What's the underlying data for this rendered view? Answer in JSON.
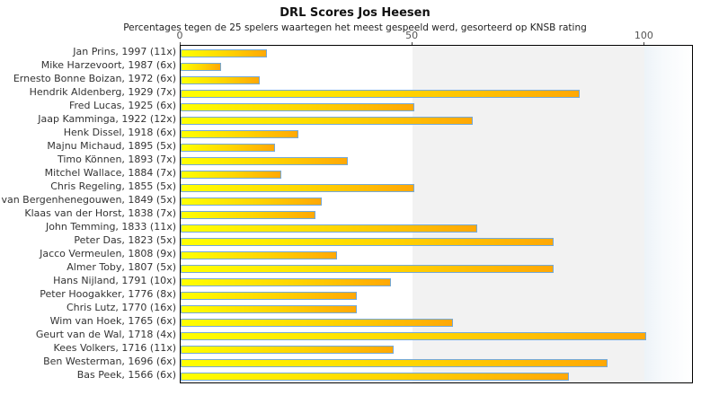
{
  "title": "DRL Scores Jos Heesen",
  "subtitle": "Percentages tegen de 25 spelers waartegen het meest gespeeld werd, gesorteerd op KNSB rating",
  "chart_data": {
    "type": "bar",
    "orientation": "horizontal",
    "title": "DRL Scores Jos Heesen",
    "subtitle": "Percentages tegen de 25 spelers waartegen het meest gespeeld werd, gesorteerd op KNSB rating",
    "xlabel": "",
    "ylabel": "",
    "xlim": [
      0,
      110.2
    ],
    "xticks": [
      0,
      50,
      100
    ],
    "grid": "vertical-bands",
    "legend": "none",
    "categories": [
      "Jan Prins, 1997 (11x)",
      "Mike Harzevoort, 1987 (6x)",
      "Ernesto Bonne Boizan, 1972 (6x)",
      "Hendrik Aldenberg, 1929 (7x)",
      "Fred Lucas, 1925 (6x)",
      "Jaap Kamminga, 1922 (12x)",
      "Henk Dissel, 1918 (6x)",
      "Majnu Michaud, 1895 (5x)",
      "Timo Können, 1893 (7x)",
      "Mitchel Wallace, 1884 (7x)",
      "Chris Regeling, 1855 (5x)",
      "van Bergenhenegouwen, 1849 (5x)",
      "Klaas van der Horst, 1838 (7x)",
      "John Temming, 1833 (11x)",
      "Peter Das, 1823 (5x)",
      "Jacco Vermeulen, 1808 (9x)",
      "Almer Toby, 1807 (5x)",
      "Hans Nijland, 1791 (10x)",
      "Peter Hoogakker, 1776 (8x)",
      "Chris Lutz, 1770 (16x)",
      "Wim van Hoek, 1765 (6x)",
      "Geurt van de Wal, 1718 (4x)",
      "Kees Volkers, 1716 (11x)",
      "Ben Westerman, 1696 (6x)",
      "Bas Peek, 1566 (6x)"
    ],
    "values": [
      18.2,
      8.3,
      16.7,
      85.7,
      50,
      62.5,
      25,
      20,
      35.7,
      21.4,
      50,
      30,
      28.6,
      63.6,
      80,
      33.3,
      80,
      45,
      37.5,
      37.5,
      58.3,
      100,
      45.5,
      91.7,
      83.3
    ],
    "colors": {
      "bar_gradient_start": "#ffff00",
      "bar_gradient_end": "#ffa806",
      "bar_border": "#74a9d8",
      "band_50_100": "#f2f2f2",
      "band_beyond_100_start": "#edf3f8",
      "plot_border": "#000000",
      "label_text": "#333333",
      "tick_text": "#555555"
    }
  }
}
